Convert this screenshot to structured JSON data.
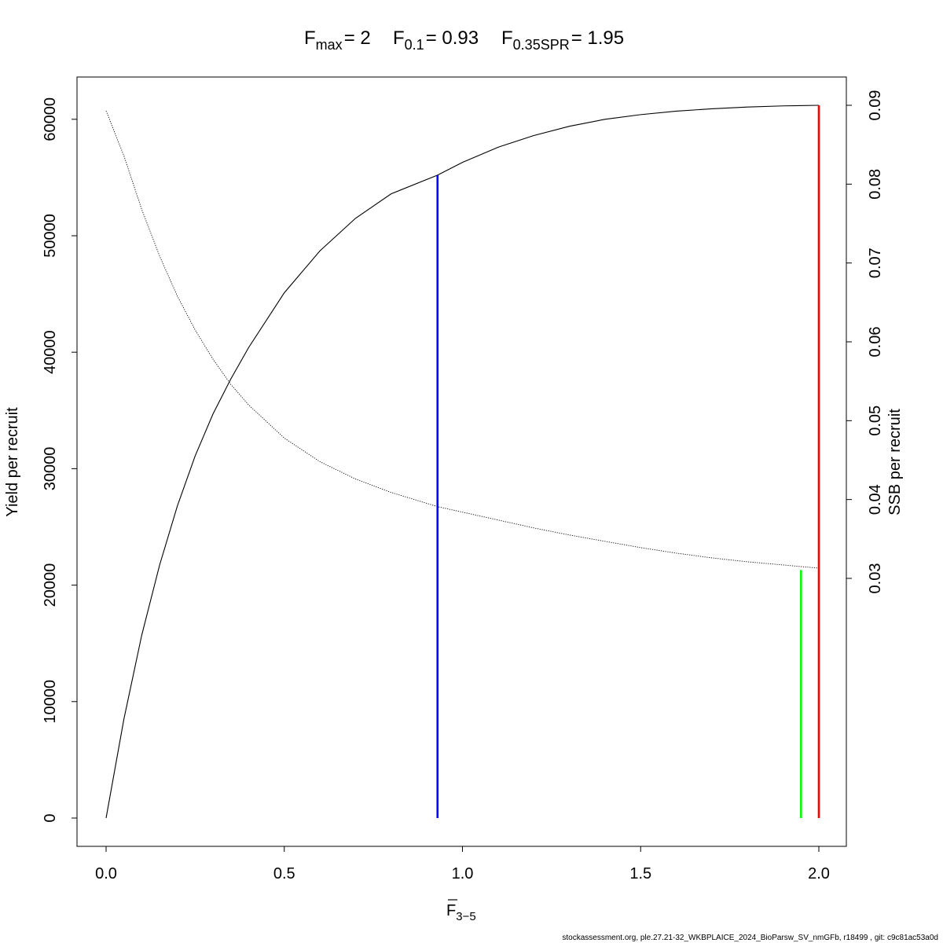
{
  "title": {
    "fmax_sub": "max",
    "fmax_value": "= 2",
    "f01_sub": "0.1",
    "f01_value": "= 0.93",
    "fspr_sub": "0.35SPR",
    "fspr_value": "= 1.95"
  },
  "footer": "stockassessment.org, ple.27.21-32_WKBPLAICE_2024_BioParsw_SV_nmGFb, r18499 , git: c9c81ac53a0d",
  "chart_data": {
    "type": "line",
    "xlabel": "F",
    "xlabel_sub": "3−5",
    "ylabel": "Yield per recruit",
    "y2label": "SSB per recruit",
    "xlim": [
      0,
      2
    ],
    "ylim": [
      0,
      61200
    ],
    "y2lim": [
      0.03,
      0.09
    ],
    "x_ticks": [
      "0.0",
      "0.5",
      "1.0",
      "1.5",
      "2.0"
    ],
    "y_ticks": [
      "0",
      "10000",
      "20000",
      "30000",
      "40000",
      "50000",
      "60000"
    ],
    "y2_ticks": [
      "0.03",
      "0.04",
      "0.05",
      "0.06",
      "0.07",
      "0.08",
      "0.09"
    ],
    "series": [
      {
        "name": "Yield per recruit",
        "axis": "left",
        "style": "solid",
        "x": [
          0,
          0.05,
          0.1,
          0.15,
          0.2,
          0.25,
          0.3,
          0.35,
          0.4,
          0.5,
          0.6,
          0.7,
          0.8,
          0.93,
          1.0,
          1.1,
          1.2,
          1.3,
          1.4,
          1.5,
          1.6,
          1.7,
          1.8,
          1.9,
          2.0
        ],
        "values": [
          0,
          8500,
          15700,
          21700,
          26800,
          31100,
          34700,
          37700,
          40400,
          45100,
          48700,
          51500,
          53600,
          55200,
          56300,
          57600,
          58600,
          59400,
          60000,
          60400,
          60700,
          60900,
          61050,
          61150,
          61200
        ]
      },
      {
        "name": "SSB per recruit",
        "axis": "right",
        "style": "dotted",
        "x": [
          0,
          0.05,
          0.1,
          0.15,
          0.2,
          0.25,
          0.3,
          0.35,
          0.4,
          0.5,
          0.6,
          0.7,
          0.8,
          0.93,
          1.0,
          1.1,
          1.2,
          1.3,
          1.4,
          1.5,
          1.6,
          1.7,
          1.8,
          1.9,
          2.0
        ],
        "values": [
          0.0893,
          0.0836,
          0.0768,
          0.0709,
          0.0658,
          0.0615,
          0.0578,
          0.0546,
          0.052,
          0.0478,
          0.0448,
          0.0426,
          0.0409,
          0.0391,
          0.0384,
          0.0374,
          0.0364,
          0.0355,
          0.0347,
          0.0339,
          0.0332,
          0.0326,
          0.0321,
          0.0317,
          0.0313
        ]
      }
    ],
    "reference_lines": [
      {
        "label": "F0.1",
        "x": 0.93,
        "y_top": 55200,
        "color": "#0000ff"
      },
      {
        "label": "F0.35SPR",
        "x": 1.95,
        "y_top": 21300,
        "color": "#00ff00"
      },
      {
        "label": "Fmax",
        "x": 2.0,
        "y_top": 61200,
        "color": "#ff0000"
      }
    ]
  }
}
